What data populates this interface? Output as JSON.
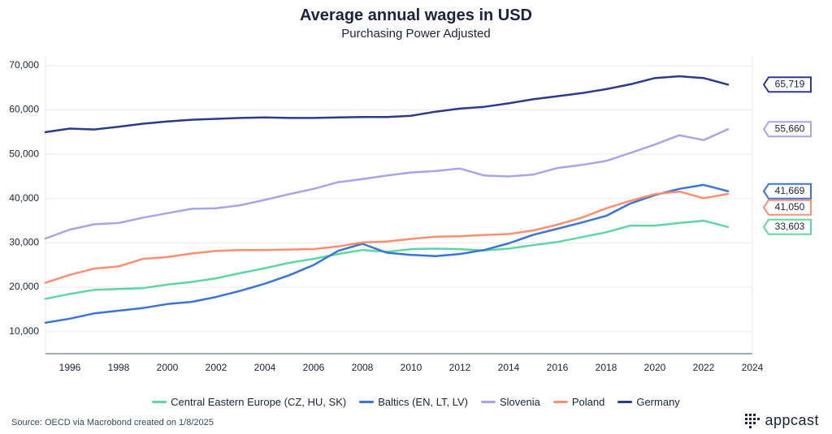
{
  "title": "Average annual wages in USD",
  "subtitle": "Purchasing Power Adjusted",
  "source": "Source: OECD via Macrobond created on 1/8/2025",
  "brand": "appcast",
  "chart": {
    "type": "line",
    "background_color": "#ffffff",
    "grid_color": "#e8e9ed",
    "axis_color": "#4a5370",
    "text_color": "#1a2340",
    "ylim": [
      5000,
      72000
    ],
    "yticks": [
      10000,
      20000,
      30000,
      40000,
      50000,
      60000,
      70000
    ],
    "ytick_labels": [
      "10,000",
      "20,000",
      "30,000",
      "40,000",
      "50,000",
      "60,000",
      "70,000"
    ],
    "xlim": [
      1995,
      2024
    ],
    "xticks": [
      1996,
      1998,
      2000,
      2002,
      2004,
      2006,
      2008,
      2010,
      2012,
      2014,
      2016,
      2018,
      2020,
      2022,
      2024
    ],
    "years": [
      1995,
      1996,
      1997,
      1998,
      1999,
      2000,
      2001,
      2002,
      2003,
      2004,
      2005,
      2006,
      2007,
      2008,
      2009,
      2010,
      2011,
      2012,
      2013,
      2014,
      2015,
      2016,
      2017,
      2018,
      2019,
      2020,
      2021,
      2022,
      2023
    ],
    "series": [
      {
        "key": "cee",
        "label": "Central Eastern Europe (CZ, HU, SK)",
        "color": "#5fd6a0",
        "end_label": "33,603",
        "values": [
          17400,
          18500,
          19400,
          19600,
          19800,
          20600,
          21200,
          22000,
          23200,
          24300,
          25500,
          26400,
          27500,
          28400,
          28000,
          28600,
          28700,
          28600,
          28300,
          28700,
          29500,
          30200,
          31300,
          32400,
          33900,
          33900,
          34500,
          35000,
          33603
        ]
      },
      {
        "key": "baltics",
        "label": "Baltics (EN, LT, LV)",
        "color": "#3a74d8",
        "end_label": "41,669",
        "values": [
          12000,
          12900,
          14100,
          14700,
          15300,
          16200,
          16700,
          17800,
          19200,
          20800,
          22700,
          25000,
          28200,
          29800,
          27800,
          27300,
          27000,
          27500,
          28400,
          29900,
          31800,
          33200,
          34600,
          36100,
          38900,
          40800,
          42200,
          43100,
          41669
        ]
      },
      {
        "key": "slovenia",
        "label": "Slovenia",
        "color": "#a9a3ea",
        "end_label": "55,660",
        "values": [
          31000,
          33000,
          34200,
          34500,
          35700,
          36700,
          37700,
          37800,
          38500,
          39700,
          41000,
          42200,
          43700,
          44400,
          45200,
          45900,
          46200,
          46800,
          45200,
          45000,
          45400,
          46900,
          47600,
          48500,
          50300,
          52200,
          54300,
          53200,
          55660
        ]
      },
      {
        "key": "poland",
        "label": "Poland",
        "color": "#ff8e70",
        "end_label": "41,050",
        "values": [
          21000,
          22800,
          24200,
          24700,
          26400,
          26800,
          27600,
          28200,
          28400,
          28400,
          28500,
          28600,
          29200,
          30100,
          30300,
          30900,
          31400,
          31500,
          31800,
          32000,
          32800,
          34100,
          35700,
          37800,
          39500,
          41000,
          41600,
          40100,
          41050
        ]
      },
      {
        "key": "germany",
        "label": "Germany",
        "color": "#2d3a8c",
        "end_label": "65,719",
        "values": [
          55000,
          55800,
          55600,
          56200,
          56900,
          57400,
          57800,
          58000,
          58200,
          58300,
          58200,
          58200,
          58300,
          58400,
          58400,
          58700,
          59600,
          60300,
          60700,
          61500,
          62400,
          63100,
          63800,
          64700,
          65800,
          67200,
          67600,
          67200,
          65719
        ]
      }
    ],
    "line_width": 2.5,
    "title_fontsize": 20,
    "subtitle_fontsize": 15,
    "tick_fontsize": 12,
    "legend_fontsize": 13
  }
}
